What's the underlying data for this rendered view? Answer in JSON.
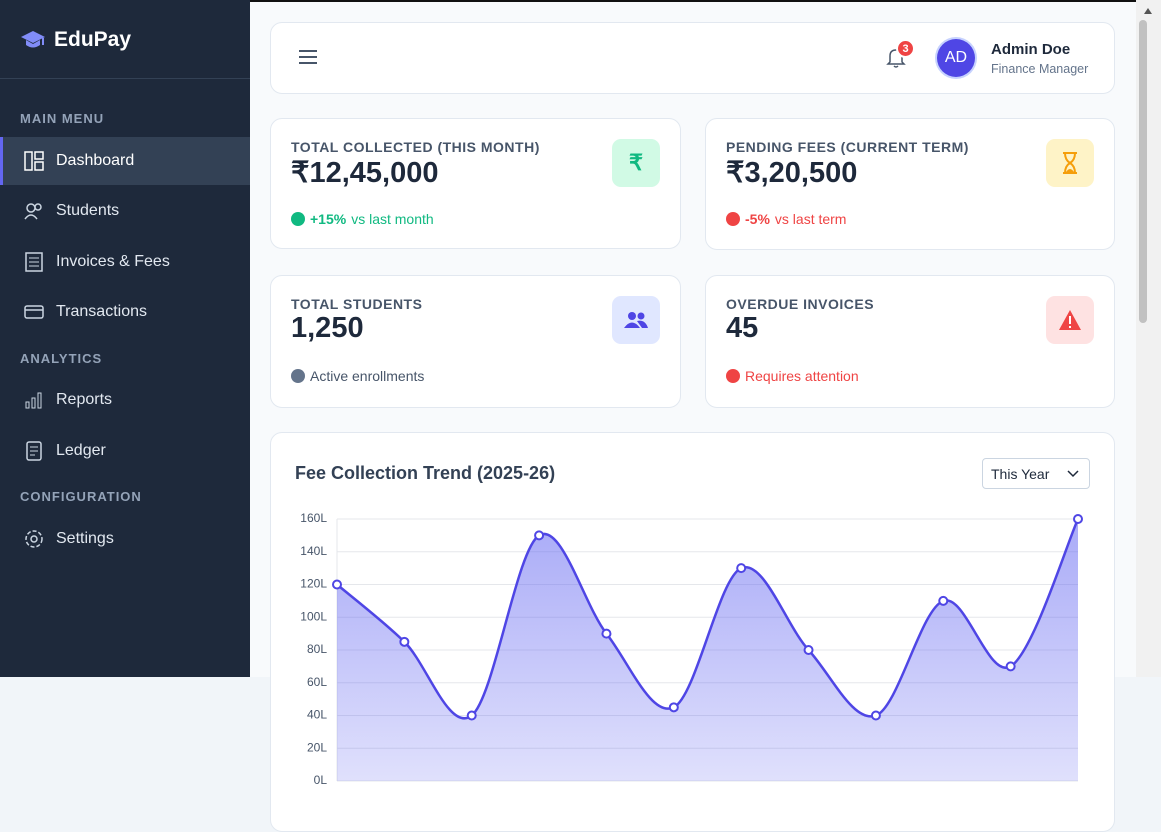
{
  "sidebar": {
    "brand": "EduPay",
    "sections": [
      {
        "title": "MAIN MENU",
        "items": [
          "Dashboard",
          "Students",
          "Invoices & Fees",
          "Transactions"
        ]
      },
      {
        "title": "ANALYTICS",
        "items": [
          "Reports",
          "Ledger"
        ]
      },
      {
        "title": "CONFIGURATION",
        "items": [
          "Settings"
        ]
      }
    ]
  },
  "header": {
    "notification_count": 3,
    "user_initials": "AD",
    "user_name": "Admin Doe",
    "user_role": "Finance Manager"
  },
  "cards": [
    {
      "label": "TOTAL COLLECTED (THIS MONTH)",
      "value": "₹12,45,000",
      "icon": "₹",
      "change": "+15%",
      "note": "vs last month"
    },
    {
      "label": "PENDING FEES (CURRENT TERM)",
      "value": "₹3,20,500",
      "change": "-5%",
      "note": "vs last term"
    },
    {
      "label": "TOTAL STUDENTS",
      "value": "1,250",
      "note": "Active enrollments"
    },
    {
      "label": "OVERDUE INVOICES",
      "value": "45",
      "note": "Requires attention"
    }
  ],
  "chart_data": {
    "type": "line",
    "title": "Fee Collection Trend (2025-26)",
    "period": "This Year",
    "categories": [
      null,
      null,
      null,
      null,
      null,
      null,
      null,
      null,
      null,
      null,
      null,
      null
    ],
    "series": [
      {
        "color": "#4f46e5",
        "values": [
          120,
          85,
          40,
          150,
          90,
          45,
          130,
          80,
          40,
          110,
          70,
          160
        ]
      }
    ],
    "ylim": [
      0,
      160
    ],
    "yticks": [
      {
        "value": 0,
        "label": "0L"
      },
      {
        "value": 20,
        "label": "20L"
      },
      {
        "value": 40,
        "label": "40L"
      },
      {
        "value": 60,
        "label": "60L"
      },
      {
        "value": 80,
        "label": "80L"
      },
      {
        "value": 100,
        "label": "100L"
      },
      {
        "value": 120,
        "label": "120L"
      },
      {
        "value": 140,
        "label": "140L"
      },
      {
        "value": 160,
        "label": "160L"
      }
    ],
    "grid": true
  }
}
